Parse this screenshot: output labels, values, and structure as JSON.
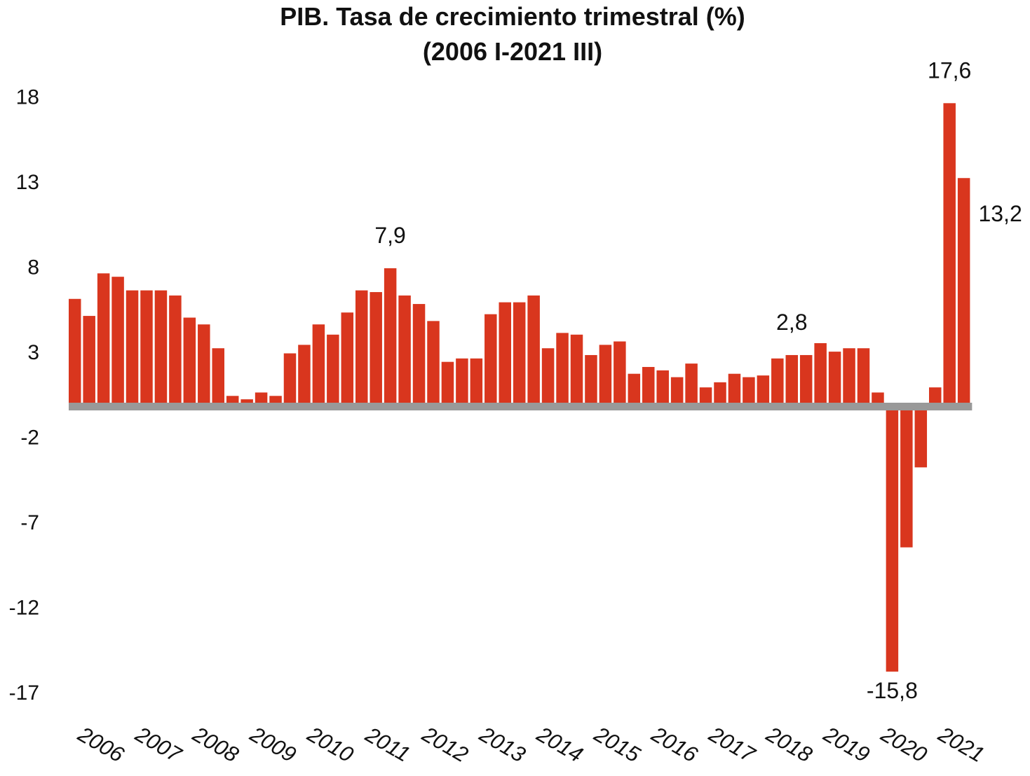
{
  "chart_data": {
    "type": "bar",
    "title": "PIB. Tasa de crecimiento trimestral (%)",
    "subtitle": "(2006 I-2021 III)",
    "xlabel": "",
    "ylabel": "",
    "ylim": [
      -17,
      18
    ],
    "yticks": [
      18,
      13,
      8,
      3,
      -2,
      -7,
      -12,
      -17
    ],
    "ytick_labels": [
      "18",
      "13",
      "8",
      "3",
      "-2",
      "-7",
      "-12",
      "-17"
    ],
    "year_labels": [
      "2006",
      "2007",
      "2008",
      "2009",
      "2010",
      "2011",
      "2012",
      "2013",
      "2014",
      "2015",
      "2016",
      "2017",
      "2018",
      "2019",
      "2020",
      "2021"
    ],
    "categories": [
      "2006 I",
      "2006 II",
      "2006 III",
      "2006 IV",
      "2007 I",
      "2007 II",
      "2007 III",
      "2007 IV",
      "2008 I",
      "2008 II",
      "2008 III",
      "2008 IV",
      "2009 I",
      "2009 II",
      "2009 III",
      "2009 IV",
      "2010 I",
      "2010 II",
      "2010 III",
      "2010 IV",
      "2011 I",
      "2011 II",
      "2011 III",
      "2011 IV",
      "2012 I",
      "2012 II",
      "2012 III",
      "2012 IV",
      "2013 I",
      "2013 II",
      "2013 III",
      "2013 IV",
      "2014 I",
      "2014 II",
      "2014 III",
      "2014 IV",
      "2015 I",
      "2015 II",
      "2015 III",
      "2015 IV",
      "2016 I",
      "2016 II",
      "2016 III",
      "2016 IV",
      "2017 I",
      "2017 II",
      "2017 III",
      "2017 IV",
      "2018 I",
      "2018 II",
      "2018 III",
      "2018 IV",
      "2019 I",
      "2019 II",
      "2019 III",
      "2019 IV",
      "2020 I",
      "2020 II",
      "2020 III",
      "2020 IV",
      "2021 I",
      "2021 II",
      "2021 III"
    ],
    "values": [
      6.1,
      5.1,
      7.6,
      7.4,
      6.6,
      6.6,
      6.6,
      6.3,
      5.0,
      4.6,
      3.2,
      0.4,
      0.2,
      0.6,
      0.4,
      2.9,
      3.4,
      4.6,
      4.0,
      5.3,
      6.6,
      6.5,
      7.9,
      6.3,
      5.8,
      4.8,
      2.4,
      2.6,
      2.6,
      5.2,
      5.9,
      5.9,
      6.3,
      3.2,
      4.1,
      4.0,
      2.8,
      3.4,
      3.6,
      1.7,
      2.1,
      1.9,
      1.5,
      2.3,
      0.9,
      1.2,
      1.7,
      1.5,
      1.6,
      2.6,
      2.8,
      2.8,
      3.5,
      3.0,
      3.2,
      3.2,
      0.6,
      -15.8,
      -8.5,
      -3.8,
      0.9,
      17.6,
      13.2
    ],
    "bar_color": "#d9361e",
    "baseline_color": "#999999",
    "annotations": [
      {
        "index": 22,
        "text": "7,9"
      },
      {
        "index": 50,
        "text": "2,8"
      },
      {
        "index": 57,
        "text": "-15,8"
      },
      {
        "index": 61,
        "text": "17,6"
      },
      {
        "index": 62,
        "text": "13,2"
      }
    ],
    "grid": false,
    "legend": "none"
  }
}
